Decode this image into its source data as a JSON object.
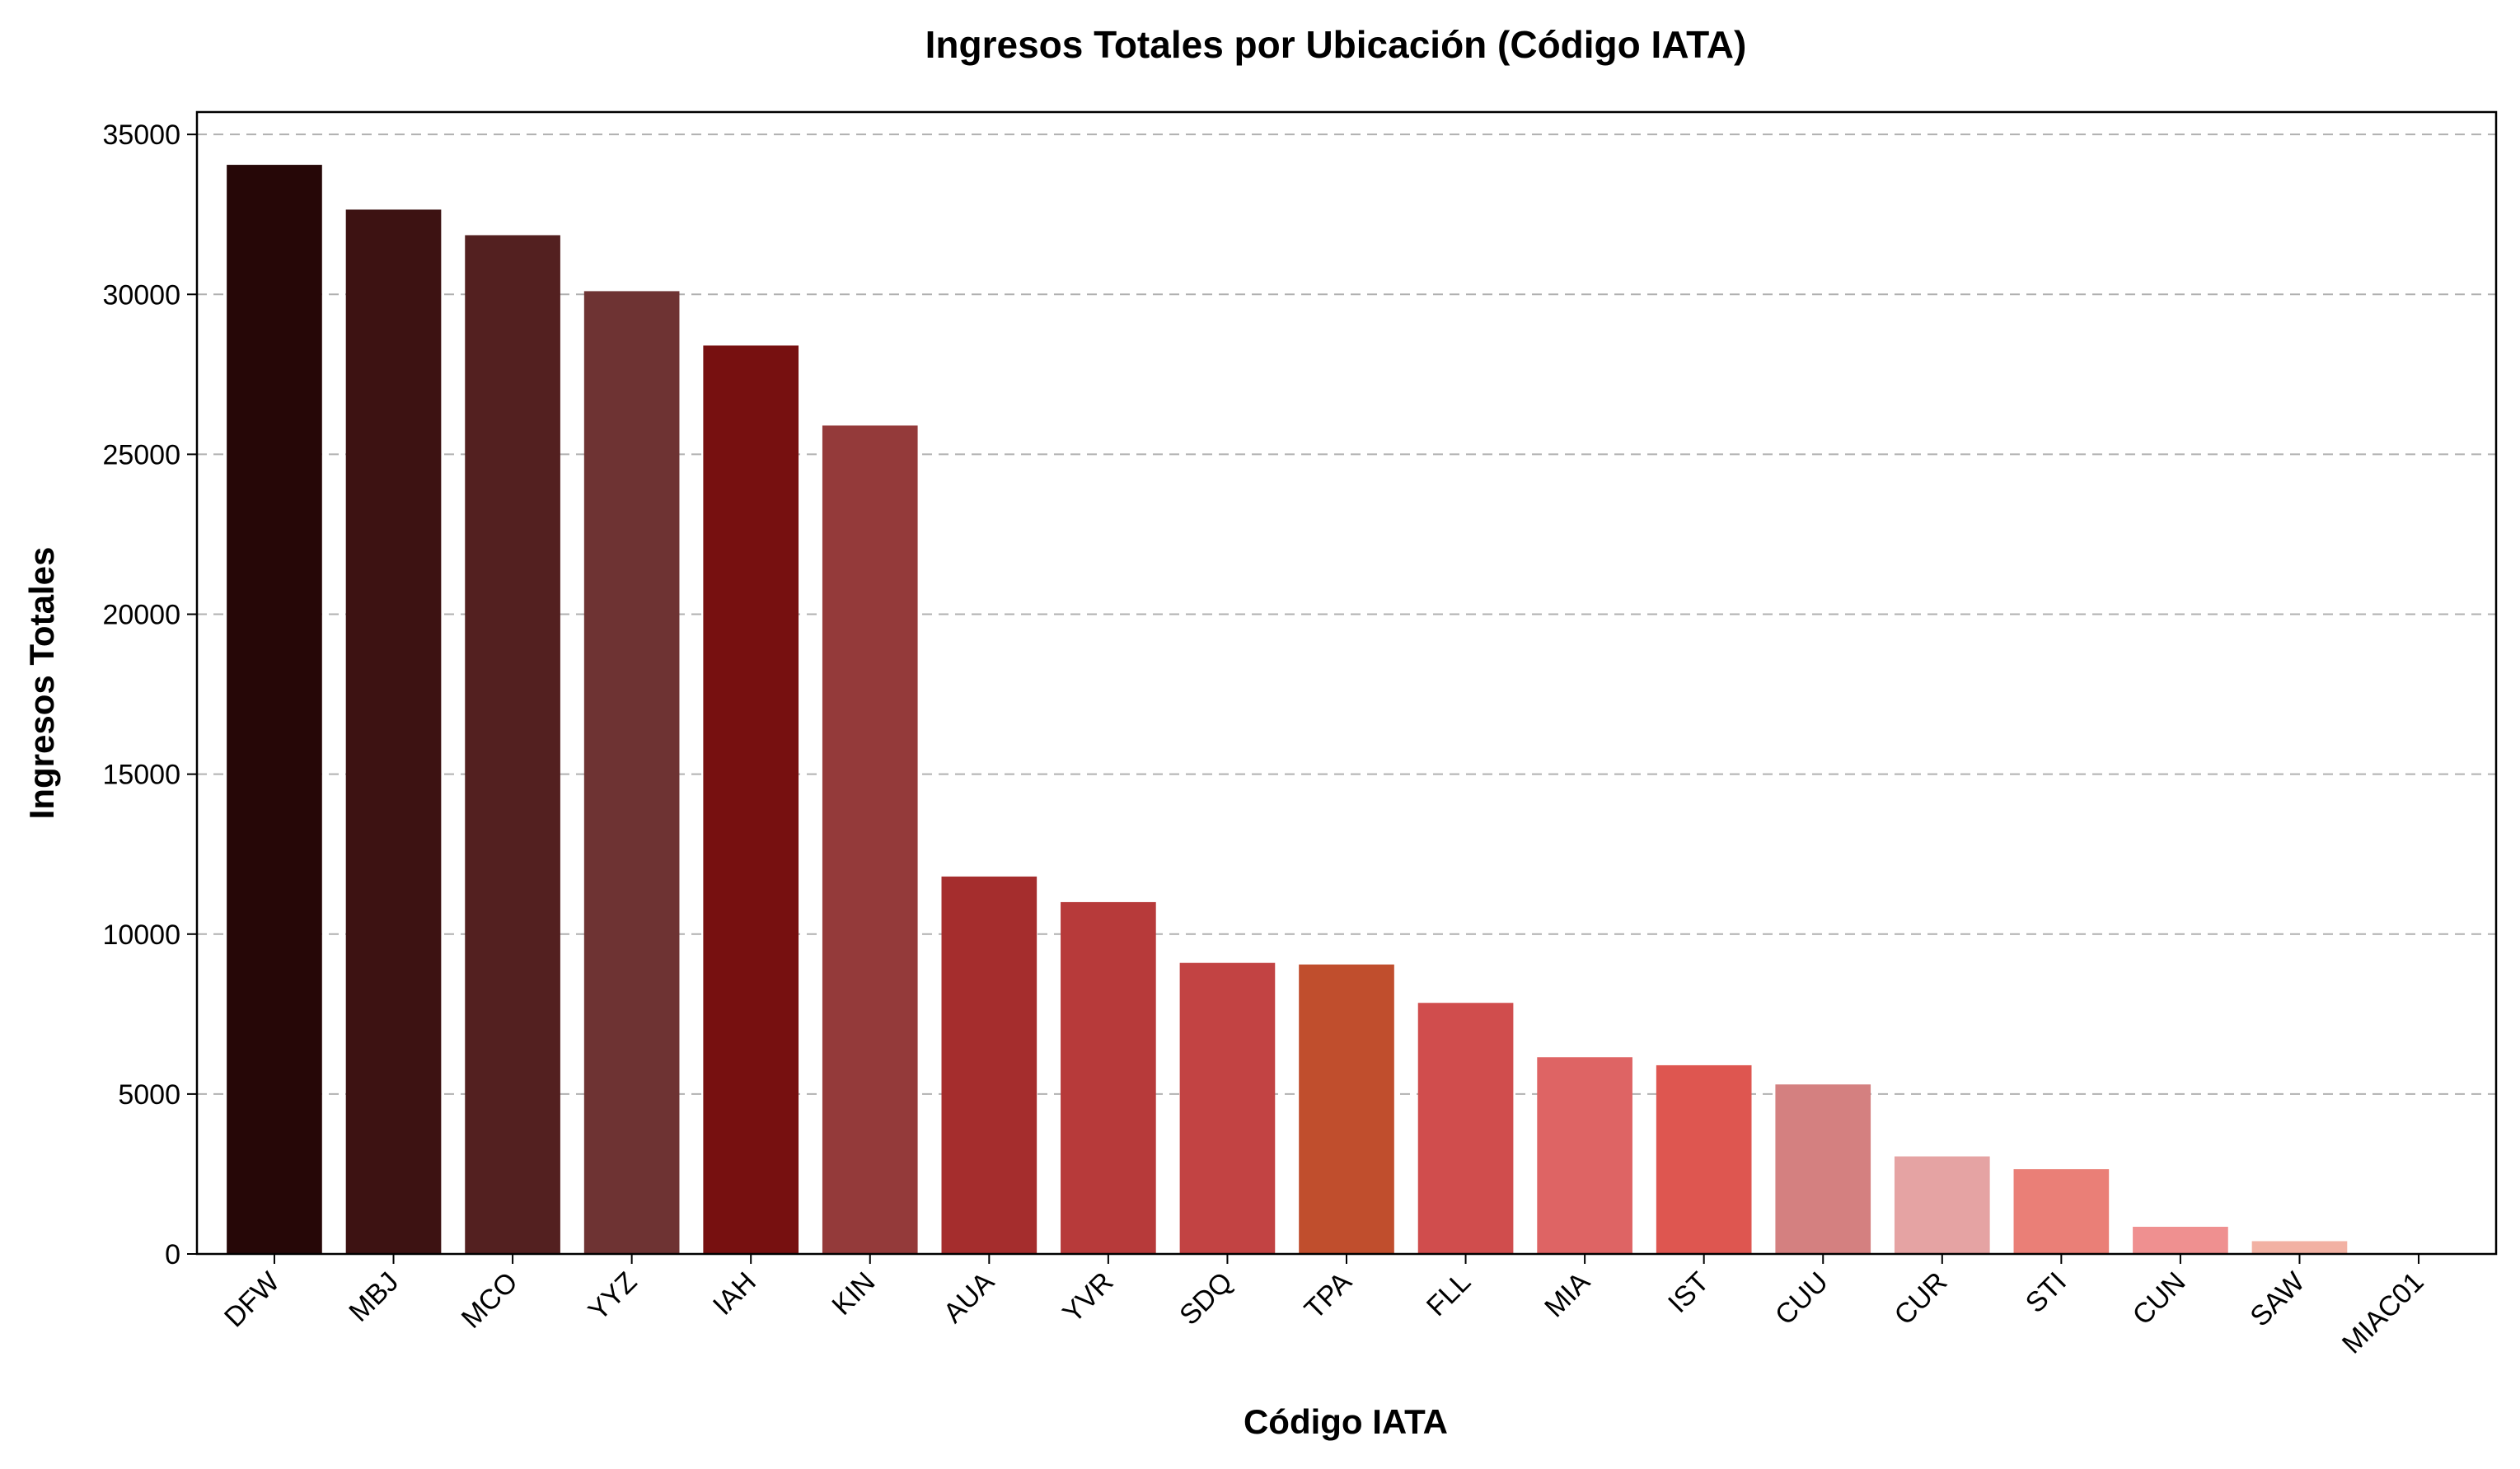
{
  "chart_data": {
    "type": "bar",
    "title": "Ingresos Totales por Ubicación (Código IATA)",
    "xlabel": "Código IATA",
    "ylabel": "Ingresos Totales",
    "ylim": [
      0,
      35700
    ],
    "yticks": [
      0,
      5000,
      10000,
      15000,
      20000,
      25000,
      30000,
      35000
    ],
    "grid": "y-dashed",
    "categories": [
      "DFW",
      "MBJ",
      "MCO",
      "YYZ",
      "IAH",
      "KIN",
      "AUA",
      "YVR",
      "SDQ",
      "TPA",
      "FLL",
      "MIA",
      "IST",
      "CUU",
      "CUR",
      "STI",
      "CUN",
      "SAW",
      "MIAC01"
    ],
    "values": [
      34050,
      32650,
      31850,
      30100,
      28400,
      25900,
      11800,
      11000,
      9100,
      9050,
      7850,
      6150,
      5900,
      5300,
      3050,
      2650,
      850,
      400,
      0
    ],
    "colors": [
      "#260707",
      "#3d1212",
      "#532020",
      "#6e3333",
      "#771010",
      "#943a3a",
      "#a52d2d",
      "#b73a3a",
      "#c24343",
      "#c04e2d",
      "#d04d4d",
      "#de6464",
      "#de5650",
      "#d48080",
      "#e5a3a3",
      "#ea7f77",
      "#ef9090",
      "#f2b1a3",
      "#f3b7ac"
    ]
  }
}
